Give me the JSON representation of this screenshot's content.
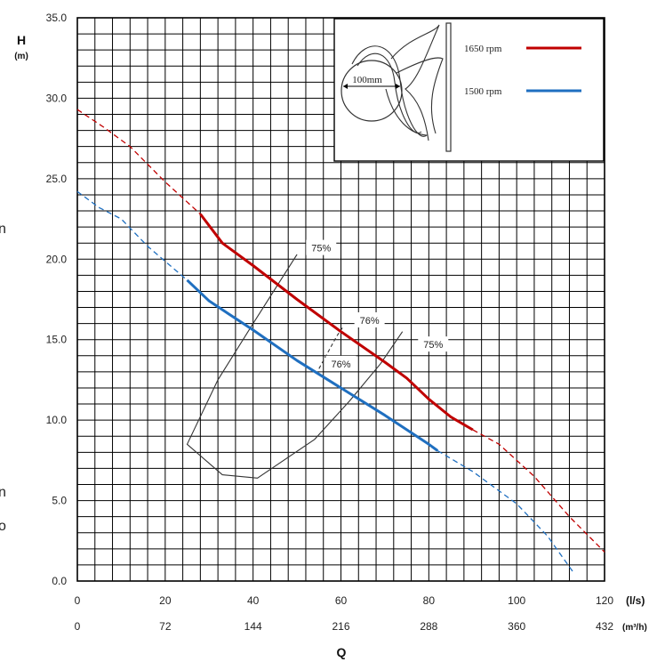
{
  "chart_data": {
    "type": "line",
    "ylabel": "H",
    "ylabel_unit": "(m)",
    "xlabel": "Q",
    "x_unit": "(l/s)",
    "x2_unit": "(m³/h)",
    "xlim": [
      0,
      120
    ],
    "ylim": [
      0,
      35
    ],
    "grid": true,
    "y_ticks": [
      "0.0",
      "5.0",
      "10.0",
      "15.0",
      "20.0",
      "25.0",
      "30.0",
      "35.0"
    ],
    "x_ticks": [
      "0",
      "20",
      "40",
      "60",
      "80",
      "100",
      "120"
    ],
    "x2_ticks": [
      "0",
      "72",
      "144",
      "216",
      "288",
      "360",
      "432"
    ],
    "legend": {
      "placement": "top-right",
      "impeller_label": "100mm",
      "entries": [
        {
          "label": "1650 rpm",
          "color": "#c00000"
        },
        {
          "label": "1500 rpm",
          "color": "#1f6fc0"
        }
      ]
    },
    "series": [
      {
        "name": "1650 rpm",
        "color": "#c00000",
        "dashed_start": [
          [
            0,
            29.3
          ],
          [
            6,
            28.2
          ],
          [
            12,
            27.0
          ],
          [
            20,
            24.8
          ],
          [
            28,
            22.8
          ]
        ],
        "solid": [
          [
            28,
            22.8
          ],
          [
            33,
            21.0
          ],
          [
            40,
            19.6
          ],
          [
            50,
            17.5
          ],
          [
            60,
            15.5
          ],
          [
            70,
            13.6
          ],
          [
            75,
            12.6
          ],
          [
            80,
            11.3
          ],
          [
            85,
            10.2
          ],
          [
            90,
            9.4
          ]
        ],
        "dashed_end": [
          [
            90,
            9.4
          ],
          [
            96,
            8.5
          ],
          [
            104,
            6.5
          ],
          [
            112,
            4.0
          ],
          [
            120,
            1.8
          ]
        ]
      },
      {
        "name": "1500 rpm",
        "color": "#1f6fc0",
        "dashed_start": [
          [
            0,
            24.2
          ],
          [
            5,
            23.2
          ],
          [
            10,
            22.5
          ],
          [
            16,
            20.8
          ],
          [
            25,
            18.7
          ]
        ],
        "solid": [
          [
            25,
            18.7
          ],
          [
            30,
            17.4
          ],
          [
            40,
            15.6
          ],
          [
            50,
            13.7
          ],
          [
            60,
            12.0
          ],
          [
            70,
            10.3
          ],
          [
            80,
            8.5
          ],
          [
            82,
            8.1
          ]
        ],
        "dashed_end": [
          [
            82,
            8.1
          ],
          [
            90,
            6.8
          ],
          [
            100,
            4.8
          ],
          [
            107,
            2.8
          ],
          [
            113,
            0.5
          ]
        ]
      }
    ],
    "efficiency_labels": [
      {
        "label": "75%",
        "x": 55.5,
        "y": 20.7
      },
      {
        "label": "76%",
        "x": 66.5,
        "y": 16.2
      },
      {
        "label": "76%",
        "x": 60,
        "y": 13.5
      },
      {
        "label": "75%",
        "x": 81,
        "y": 14.7
      }
    ],
    "efficiency_curves": [
      {
        "label": "75%",
        "points": [
          [
            50,
            20.3
          ],
          [
            40,
            16.0
          ],
          [
            32,
            12.5
          ],
          [
            25,
            8.5
          ],
          [
            33,
            6.6
          ],
          [
            41,
            6.4
          ],
          [
            54,
            8.8
          ],
          [
            62,
            11.2
          ],
          [
            69,
            13.5
          ],
          [
            74,
            15.5
          ]
        ]
      },
      {
        "label": "76%",
        "points": [
          [
            55,
            13.2
          ],
          [
            57,
            14.2
          ],
          [
            59,
            15.2
          ],
          [
            60.5,
            15.8
          ]
        ]
      }
    ]
  },
  "page_edge": {
    "glyphs": [
      "n",
      "n",
      "o"
    ]
  }
}
